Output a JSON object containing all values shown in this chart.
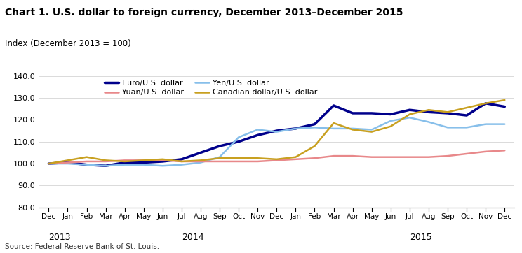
{
  "title": "Chart 1. U.S. dollar to foreign currency, December 2013–December 2015",
  "index_label": "Index (December 2013 = 100)",
  "source": "Source: Federal Reserve Bank of St. Louis.",
  "ylim": [
    80.0,
    140.0
  ],
  "yticks": [
    80.0,
    90.0,
    100.0,
    110.0,
    120.0,
    130.0,
    140.0
  ],
  "x_labels": [
    "Dec",
    "Jan",
    "Feb",
    "Mar",
    "Apr",
    "May",
    "Jun",
    "Jul",
    "Aug",
    "Sep",
    "Oct",
    "Nov",
    "Dec",
    "Jan",
    "Feb",
    "Mar",
    "Apr",
    "May",
    "Jun",
    "Jul",
    "Aug",
    "Sep",
    "Oct",
    "Nov",
    "Dec"
  ],
  "year_labels": [
    [
      "2013",
      0
    ],
    [
      "2014",
      7
    ],
    [
      "2015",
      19
    ]
  ],
  "series": [
    {
      "label": "Euro/U.S. dollar",
      "color": "#00008B",
      "linewidth": 2.5,
      "values": [
        100.0,
        100.5,
        99.5,
        99.0,
        100.5,
        100.5,
        101.0,
        102.0,
        105.0,
        108.0,
        110.0,
        113.0,
        115.0,
        116.0,
        118.0,
        126.5,
        123.0,
        123.0,
        122.5,
        124.5,
        123.5,
        123.0,
        122.0,
        127.5,
        126.0
      ]
    },
    {
      "label": "Yen/U.S. dollar",
      "color": "#87BFEA",
      "linewidth": 1.8,
      "values": [
        100.0,
        100.0,
        99.5,
        99.0,
        99.5,
        99.5,
        99.0,
        99.5,
        100.5,
        103.0,
        112.0,
        115.5,
        114.5,
        116.0,
        116.5,
        116.0,
        116.0,
        115.5,
        119.5,
        121.0,
        119.0,
        116.5,
        116.5,
        118.0,
        118.0
      ]
    },
    {
      "label": "Yuan/U.S. dollar",
      "color": "#E8888A",
      "linewidth": 1.8,
      "values": [
        100.0,
        100.5,
        101.0,
        101.0,
        101.5,
        101.5,
        101.5,
        101.0,
        101.0,
        101.0,
        101.0,
        101.0,
        101.5,
        102.0,
        102.5,
        103.5,
        103.5,
        103.0,
        103.0,
        103.0,
        103.0,
        103.5,
        104.5,
        105.5,
        106.0
      ]
    },
    {
      "label": "Canadian dollar/U.S. dollar",
      "color": "#C8A020",
      "linewidth": 1.8,
      "values": [
        100.0,
        101.5,
        103.0,
        101.5,
        101.0,
        101.5,
        102.0,
        101.0,
        101.5,
        102.5,
        102.5,
        102.5,
        102.0,
        103.0,
        108.0,
        118.5,
        115.5,
        114.5,
        117.0,
        122.5,
        124.5,
        123.5,
        125.5,
        127.5,
        129.0
      ]
    }
  ]
}
